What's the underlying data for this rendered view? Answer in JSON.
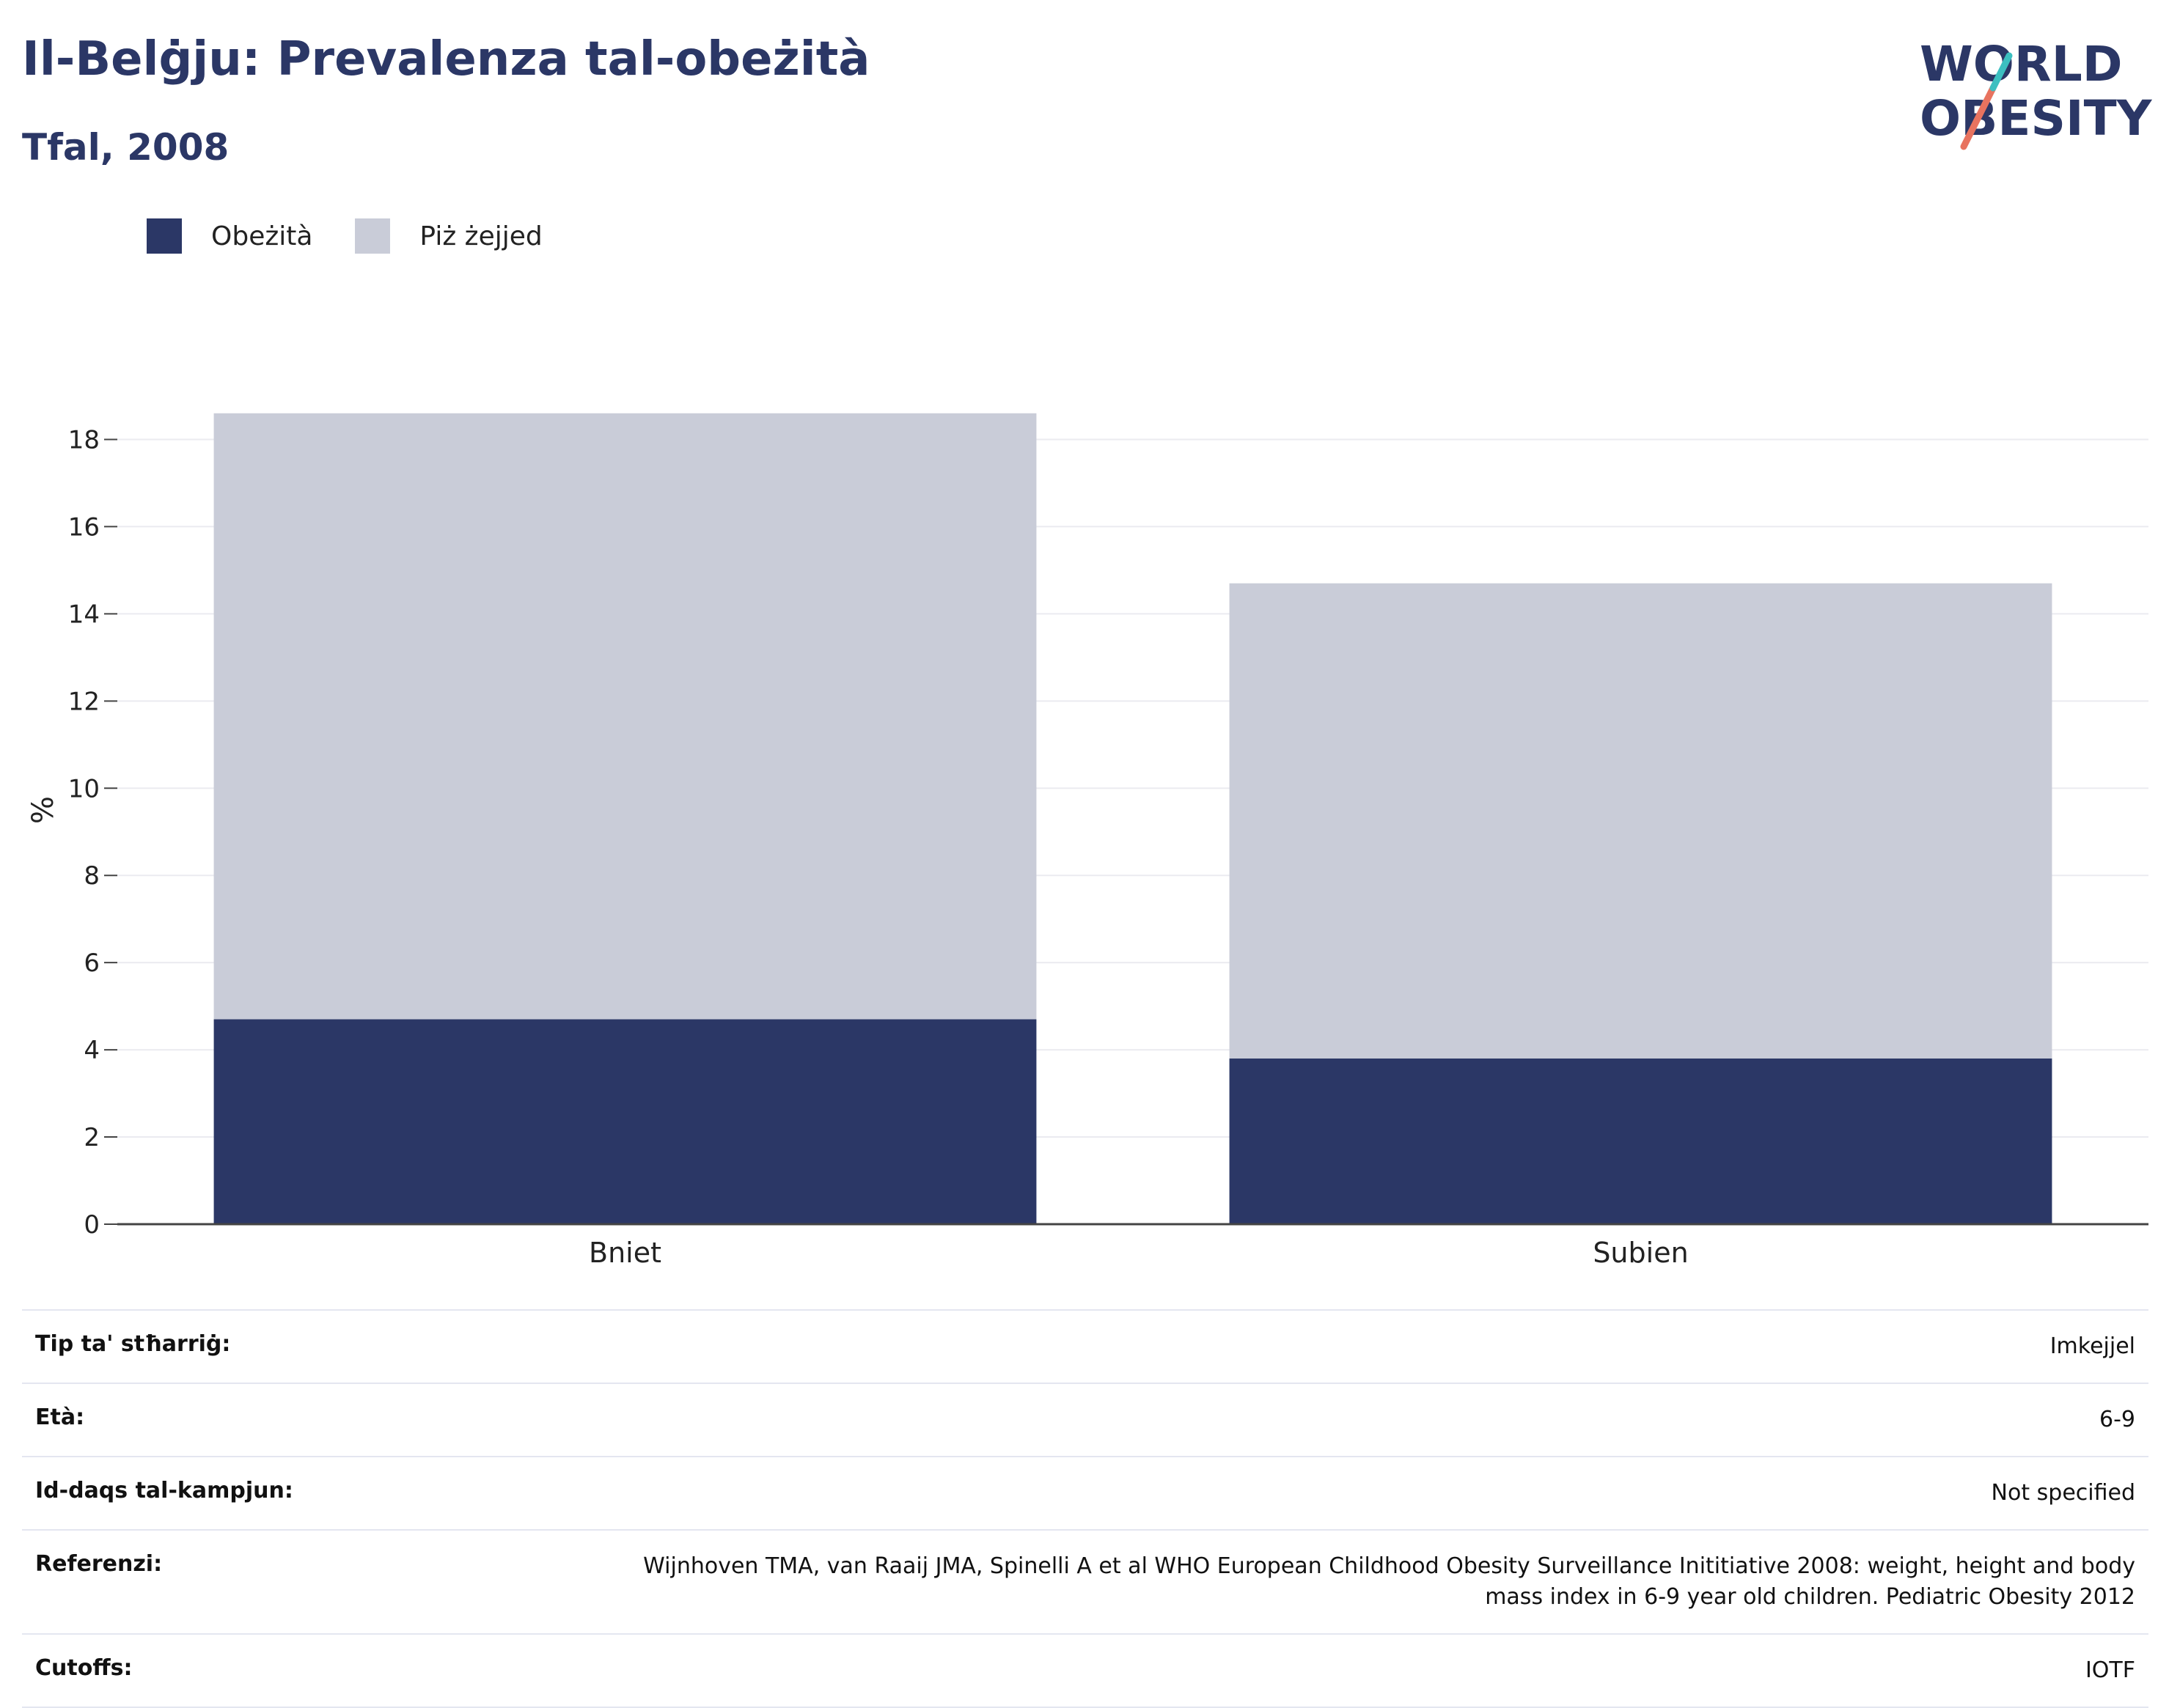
{
  "header": {
    "title": "Il-Belġju: Prevalenza tal-obeżità",
    "subtitle": "Tfal, 2008"
  },
  "logo": {
    "line1": "WORLD",
    "line2": "OBESITY"
  },
  "legend": [
    {
      "label": "Obeżità",
      "color": "#2b3766"
    },
    {
      "label": "Piż żejjed",
      "color": "#c9ccd8"
    }
  ],
  "chart_data": {
    "type": "bar",
    "stacked": true,
    "categories": [
      "Bniet",
      "Subien"
    ],
    "series": [
      {
        "name": "Obeżità",
        "color": "#2b3766",
        "values": [
          4.7,
          3.8
        ]
      },
      {
        "name": "Piż żejjed",
        "color": "#c9ccd8",
        "values": [
          13.9,
          10.9
        ]
      }
    ],
    "ylabel": "%",
    "xlabel": "",
    "ylim": [
      0,
      19
    ],
    "yticks": [
      0,
      2,
      4,
      6,
      8,
      10,
      12,
      14,
      16,
      18
    ],
    "grid": true,
    "legend_position": "top-left"
  },
  "info_table": [
    {
      "label": "Tip ta' stħarriġ:",
      "value": "Imkejjel"
    },
    {
      "label": "Età:",
      "value": "6-9"
    },
    {
      "label": "Id-daqs tal-kampjun:",
      "value": "Not specified"
    },
    {
      "label": "Referenzi:",
      "value": "Wijnhoven TMA, van Raaij JMA, Spinelli A et al WHO European Childhood Obesity Surveillance Inititiative 2008: weight, height and body mass index in 6-9 year old children. Pediatric Obesity 2012"
    },
    {
      "label": "Cutoffs:",
      "value": "IOTF"
    }
  ]
}
